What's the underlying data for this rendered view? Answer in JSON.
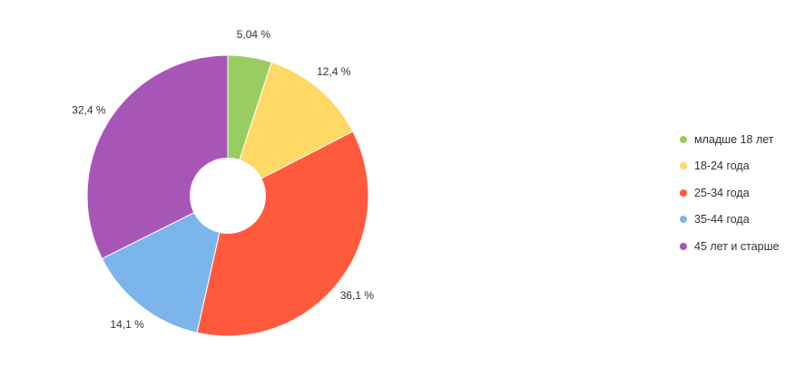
{
  "chart_data": {
    "type": "pie",
    "donut": true,
    "categories": [
      "младше 18 лет",
      "18-24 года",
      "25-34 года",
      "35-44 года",
      "45 лет и старше"
    ],
    "values": [
      5.04,
      12.4,
      36.1,
      14.1,
      32.4
    ],
    "value_labels": [
      "5,04 %",
      "12,4 %",
      "36,1 %",
      "14,1 %",
      "32,4 %"
    ],
    "colors": [
      "#9acd61",
      "#ffd966",
      "#ff5a3c",
      "#7cb5ec",
      "#a855b8"
    ],
    "legend_placement": "right",
    "start_angle": "top, clockwise"
  }
}
